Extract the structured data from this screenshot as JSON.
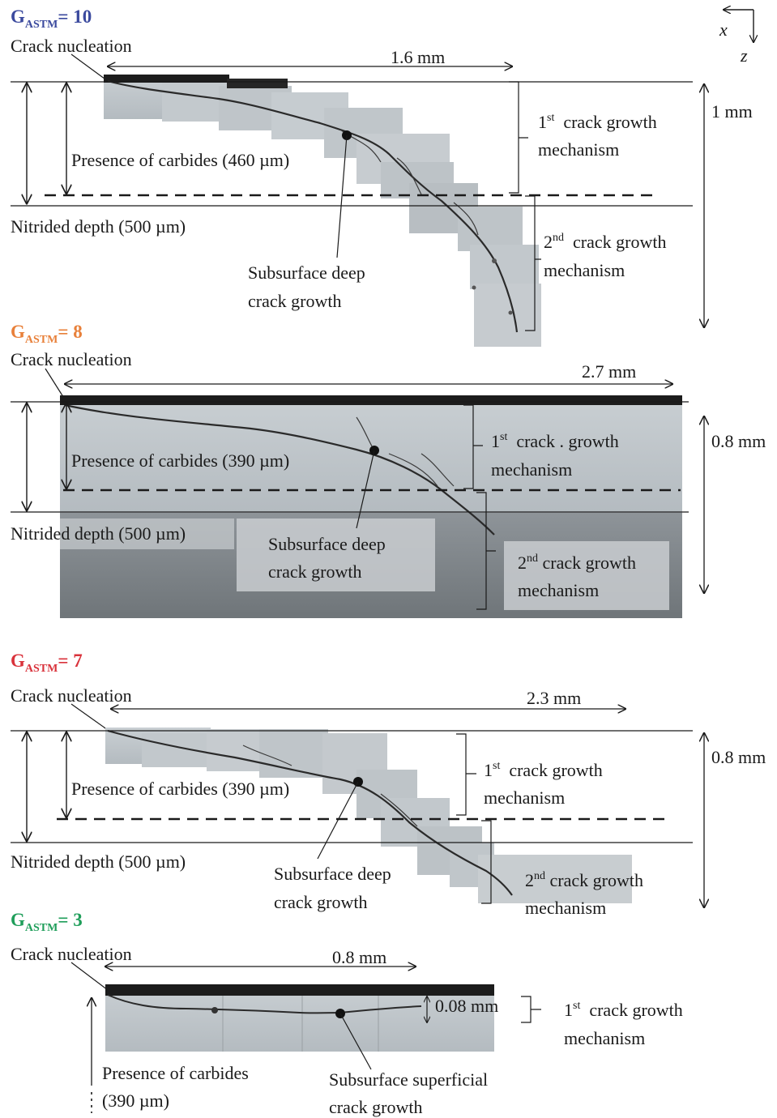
{
  "axes": {
    "x_symbol": "x⃗",
    "z_symbol": "z⃗"
  },
  "panels": [
    {
      "title_base": "G",
      "title_sub": "ASTM",
      "title_value": "= 10",
      "title_color": "#3b4a9e",
      "nucleation": "Crack nucleation",
      "length": "1.6 mm",
      "carbides": "Presence of carbides (460 µm)",
      "nitrided": "Nitrided depth  (500 µm)",
      "subsurface_1": "Subsurface deep",
      "subsurface_2": "crack growth",
      "mech1_num": "1",
      "mech1_sup": "st",
      "mech1_a": "crack   growth",
      "mech1_b": "mechanism",
      "mech2_num": "2",
      "mech2_sup": "nd",
      "mech2_a": "crack   growth",
      "mech2_b": "mechanism",
      "depth": "1 mm"
    },
    {
      "title_base": "G",
      "title_sub": "ASTM",
      "title_value": "= 8",
      "title_color": "#e8803a",
      "nucleation": "Crack nucleation",
      "length": "2.7 mm",
      "carbides": "Presence of carbides (390 µm)",
      "nitrided": "Nitrided depth  (500 µm)",
      "subsurface_1": "Subsurface deep",
      "subsurface_2": "crack growth",
      "mech1_num": "1",
      "mech1_sup": "st",
      "mech1_a": "crack . growth",
      "mech1_b": "mechanism",
      "mech2_num": "2",
      "mech2_sup": "nd",
      "mech2_a": "crack growth",
      "mech2_b": "mechanism",
      "depth": "0.8 mm"
    },
    {
      "title_base": "G",
      "title_sub": "ASTM",
      "title_value": "= 7",
      "title_color": "#d9323b",
      "nucleation": "Crack nucleation",
      "length": "2.3 mm",
      "carbides": "Presence of carbides (390 µm)",
      "nitrided": "Nitrided depth  (500 µm)",
      "subsurface_1": "Subsurface deep",
      "subsurface_2": "crack growth",
      "mech1_num": "1",
      "mech1_sup": "st",
      "mech1_a": "crack   growth",
      "mech1_b": "mechanism",
      "mech2_num": "2",
      "mech2_sup": "nd",
      "mech2_a": "crack growth",
      "mech2_b": "mechanism",
      "depth": "0.8 mm"
    },
    {
      "title_base": "G",
      "title_sub": "ASTM",
      "title_value": "= 3",
      "title_color": "#1f9e5a",
      "nucleation": "Crack nucleation",
      "length": "0.8 mm",
      "small_depth": "0.08 mm",
      "carbides_1": "Presence of carbides",
      "carbides_2": "(390 µm)",
      "subsurface_1": "Subsurface superficial",
      "subsurface_2": "crack growth",
      "mech1_num": "1",
      "mech1_sup": "st",
      "mech1_a": "crack   growth",
      "mech1_b": "mechanism"
    }
  ]
}
